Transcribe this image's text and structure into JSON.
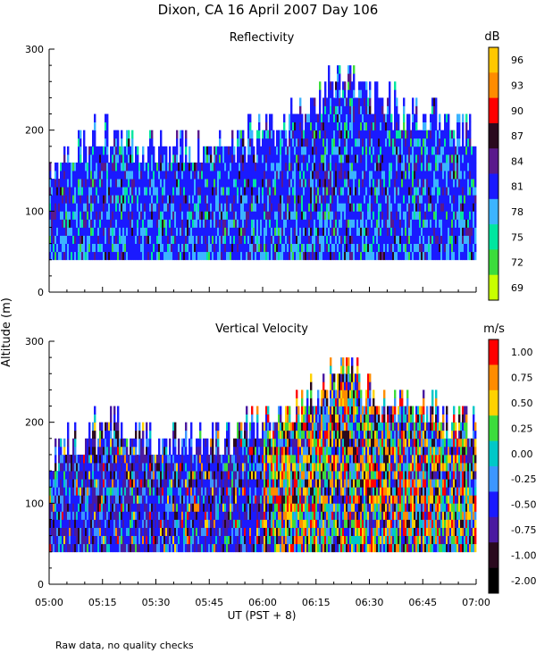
{
  "title": "Dixon, CA 16 April 2007  Day 106",
  "ylabel": "Altitude (m)",
  "xlabel": "UT  (PST + 8)",
  "footnote": "Raw data, no quality checks",
  "x_ticks": [
    "05:00",
    "05:15",
    "05:30",
    "05:45",
    "06:00",
    "06:15",
    "06:30",
    "06:45",
    "07:00"
  ],
  "chart_data": [
    {
      "type": "heatmap",
      "title": "Reflectivity",
      "xlabel": "UT  (PST + 8)",
      "ylabel": "Altitude (m)",
      "xlim": [
        "05:00",
        "07:00"
      ],
      "ylim": [
        0,
        300
      ],
      "y_ticks": [
        0,
        100,
        200,
        300
      ],
      "data_floor_m": 40,
      "echo_top_m": [
        {
          "time": "05:00",
          "top": 160
        },
        {
          "time": "05:15",
          "top": 200
        },
        {
          "time": "05:30",
          "top": 180
        },
        {
          "time": "05:45",
          "top": 180
        },
        {
          "time": "06:00",
          "top": 200
        },
        {
          "time": "06:15",
          "top": 240
        },
        {
          "time": "06:24",
          "top": 280
        },
        {
          "time": "06:30",
          "top": 240
        },
        {
          "time": "06:45",
          "top": 220
        },
        {
          "time": "07:00",
          "top": 200
        }
      ],
      "colorbar": {
        "unit": "dB",
        "labels": [
          "96",
          "93",
          "90",
          "87",
          "84",
          "81",
          "78",
          "75",
          "72",
          "69"
        ],
        "colors": [
          "#ffc800",
          "#ff8c00",
          "#ff0000",
          "#2a0a1e",
          "#5a1a8c",
          "#1a1aff",
          "#3cb4ff",
          "#00e6a0",
          "#3cdc3c",
          "#c8ff00"
        ]
      }
    },
    {
      "type": "heatmap",
      "title": "Vertical Velocity",
      "xlabel": "UT  (PST + 8)",
      "ylabel": "Altitude (m)",
      "xlim": [
        "05:00",
        "07:00"
      ],
      "ylim": [
        0,
        300
      ],
      "y_ticks": [
        0,
        100,
        200,
        300
      ],
      "data_floor_m": 40,
      "echo_top_m": [
        {
          "time": "05:00",
          "top": 160
        },
        {
          "time": "05:15",
          "top": 200
        },
        {
          "time": "05:30",
          "top": 180
        },
        {
          "time": "05:45",
          "top": 180
        },
        {
          "time": "06:00",
          "top": 200
        },
        {
          "time": "06:15",
          "top": 240
        },
        {
          "time": "06:24",
          "top": 280
        },
        {
          "time": "06:30",
          "top": 240
        },
        {
          "time": "06:45",
          "top": 220
        },
        {
          "time": "07:00",
          "top": 200
        }
      ],
      "colorbar": {
        "unit": "m/s",
        "labels": [
          "1.00",
          "0.75",
          "0.50",
          "0.25",
          "0.00",
          "-0.25",
          "-0.50",
          "-0.75",
          "-1.00",
          "-2.00"
        ],
        "colors": [
          "#ff0000",
          "#ff8c00",
          "#ffd200",
          "#3cdc3c",
          "#00c8c8",
          "#3c96ff",
          "#1a1aff",
          "#4a1aa0",
          "#2a0a1e",
          "#000000"
        ]
      }
    }
  ]
}
